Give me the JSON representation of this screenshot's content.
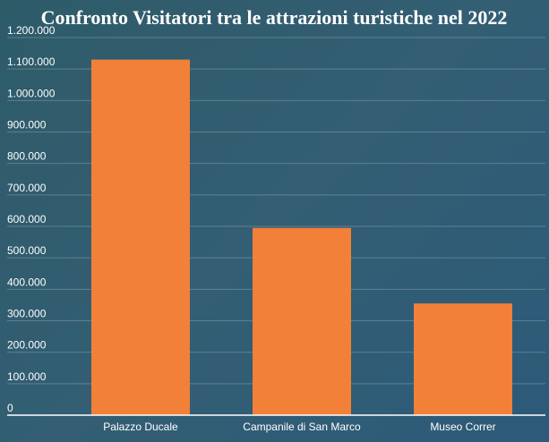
{
  "chart_data": {
    "type": "bar",
    "title": "Confronto Visitatori tra le attrazioni turistiche nel 2022",
    "xlabel": "",
    "ylabel": "",
    "categories": [
      "Palazzo Ducale",
      "Campanile di San Marco",
      "Museo Correr"
    ],
    "values": [
      1130000,
      595000,
      355000
    ],
    "ylim": [
      0,
      1200000
    ],
    "yticks": [
      0,
      100000,
      200000,
      300000,
      400000,
      500000,
      600000,
      700000,
      800000,
      900000,
      1000000,
      1100000,
      1200000
    ],
    "ytick_labels": [
      "0",
      "100.000",
      "200.000",
      "300.000",
      "400.000",
      "500.000",
      "600.000",
      "700.000",
      "800.000",
      "900.000",
      "1.000.000",
      "1.100.000",
      "1.200.000"
    ],
    "grid": true,
    "legend": "none",
    "bar_color": "#f28038"
  }
}
